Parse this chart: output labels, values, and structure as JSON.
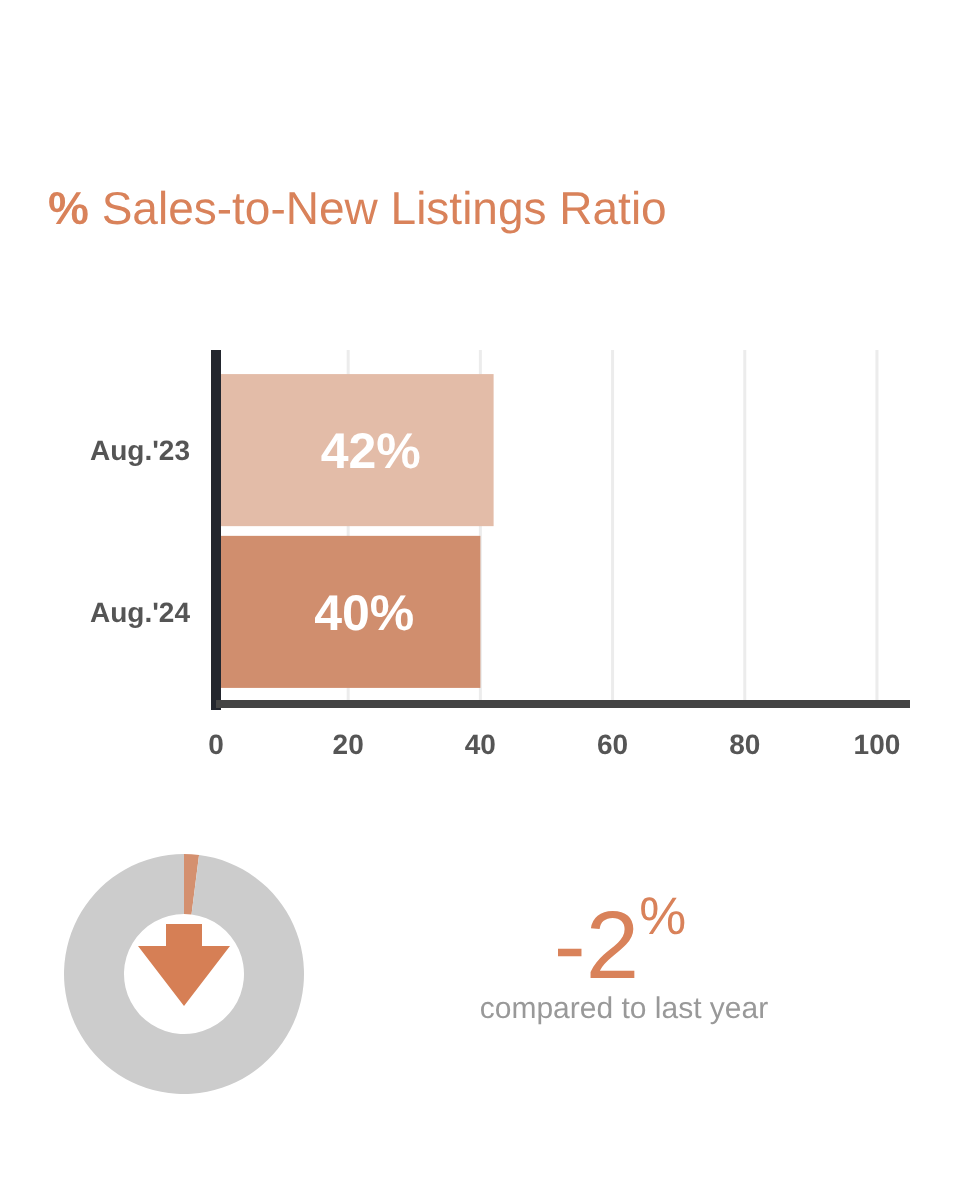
{
  "chart_data": [
    {
      "type": "bar",
      "orientation": "horizontal",
      "title": "% Sales-to-New Listings Ratio",
      "categories": [
        "Aug.'23",
        "Aug.'24"
      ],
      "values": [
        42,
        40
      ],
      "colors": [
        "#e3bca8",
        "#d08e6e"
      ],
      "value_labels": [
        "42%",
        "40%"
      ],
      "xlim": [
        0,
        105
      ],
      "xticks": [
        0,
        20,
        40,
        60,
        80,
        100
      ],
      "grid": "x"
    },
    {
      "type": "donut",
      "categories": [
        null,
        null
      ],
      "values": [
        2,
        98
      ],
      "colors": [
        "#d4906f",
        "#cccccc"
      ],
      "annotations": [
        "-2$^{%}$",
        "compared to last year"
      ]
    }
  ]
}
